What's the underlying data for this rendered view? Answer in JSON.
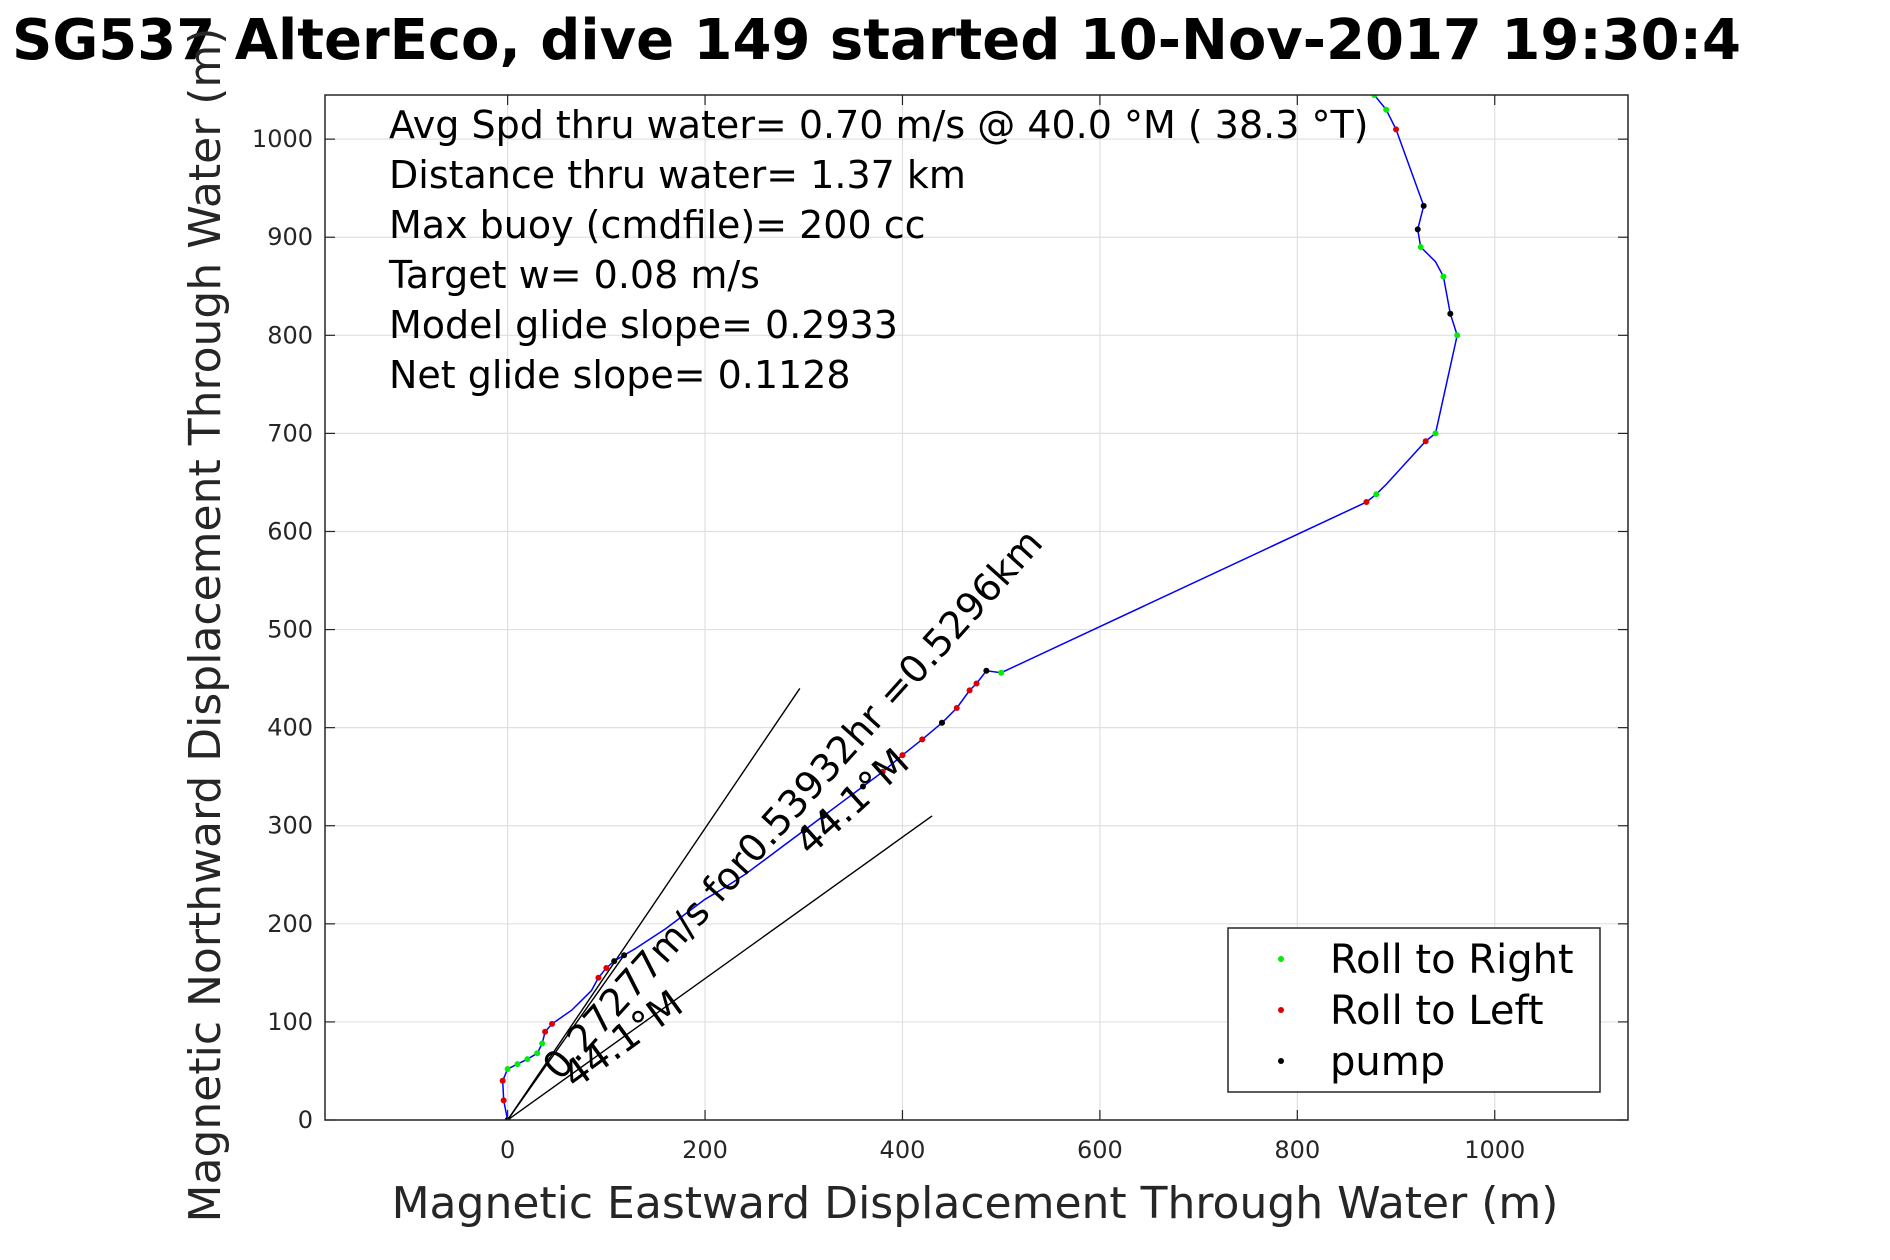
{
  "title": "SG537 AlterEco, dive 149 started 10-Nov-2017 19:30:4",
  "annotations": [
    "Avg Spd thru water=  0.70 m/s @  40.0 °M ( 38.3 °T)",
    "Distance thru water=  1.37 km",
    "Max buoy (cmdfile)= 200 cc",
    "Target w= 0.08 m/s",
    "Model glide slope= 0.2933",
    "Net glide slope= 0.1128"
  ],
  "current_text": "0.27277m/s for0.53932hr =0.5296km",
  "heading_labels": [
    "44.1°M",
    "44.1°M"
  ],
  "chart_data": {
    "type": "line",
    "xlabel": "Magnetic Eastward Displacement Through Water (m)",
    "ylabel": "Magnetic Northward Displacement Through Water (m)",
    "xlim": [
      -185,
      1135
    ],
    "ylim": [
      0,
      1045
    ],
    "xticks": [
      0,
      200,
      400,
      600,
      800,
      1000
    ],
    "yticks": [
      0,
      100,
      200,
      300,
      400,
      500,
      600,
      700,
      800,
      900,
      1000
    ],
    "grid": true,
    "legend": {
      "placement": "bottom-right",
      "entries": [
        {
          "label": "Roll to Right",
          "color": "#00ee00"
        },
        {
          "label": "Roll to Left",
          "color": "#dd0000"
        },
        {
          "label": "pump",
          "color": "#000000"
        }
      ]
    },
    "track": {
      "color": "#0000ff",
      "points": [
        [
          0,
          0
        ],
        [
          -4,
          20
        ],
        [
          -5,
          40
        ],
        [
          0,
          52
        ],
        [
          10,
          57
        ],
        [
          20,
          62
        ],
        [
          30,
          68
        ],
        [
          35,
          78
        ],
        [
          38,
          90
        ],
        [
          45,
          98
        ],
        [
          55,
          105
        ],
        [
          65,
          112
        ],
        [
          75,
          122
        ],
        [
          85,
          132
        ],
        [
          92,
          145
        ],
        [
          100,
          155
        ],
        [
          108,
          162
        ],
        [
          118,
          168
        ],
        [
          130,
          175
        ],
        [
          145,
          185
        ],
        [
          160,
          195
        ],
        [
          180,
          210
        ],
        [
          200,
          225
        ],
        [
          220,
          237
        ],
        [
          240,
          250
        ],
        [
          260,
          265
        ],
        [
          280,
          280
        ],
        [
          300,
          295
        ],
        [
          320,
          310
        ],
        [
          340,
          325
        ],
        [
          360,
          340
        ],
        [
          380,
          355
        ],
        [
          400,
          372
        ],
        [
          420,
          388
        ],
        [
          440,
          405
        ],
        [
          455,
          420
        ],
        [
          468,
          438
        ],
        [
          475,
          445
        ],
        [
          485,
          458
        ],
        [
          500,
          456
        ],
        [
          870,
          630
        ],
        [
          880,
          638
        ],
        [
          890,
          648
        ],
        [
          930,
          692
        ],
        [
          940,
          700
        ],
        [
          962,
          800
        ],
        [
          955,
          822
        ],
        [
          948,
          860
        ],
        [
          940,
          875
        ],
        [
          925,
          890
        ],
        [
          922,
          908
        ],
        [
          928,
          932
        ],
        [
          900,
          1010
        ],
        [
          890,
          1030
        ],
        [
          878,
          1045
        ]
      ]
    },
    "roll_right": [
      [
        0,
        52
      ],
      [
        10,
        57
      ],
      [
        20,
        62
      ],
      [
        30,
        68
      ],
      [
        35,
        78
      ],
      [
        940,
        700
      ],
      [
        962,
        800
      ],
      [
        948,
        860
      ],
      [
        925,
        890
      ],
      [
        878,
        1045
      ],
      [
        890,
        1030
      ],
      [
        500,
        456
      ],
      [
        880,
        638
      ]
    ],
    "roll_left": [
      [
        -5,
        40
      ],
      [
        -4,
        20
      ],
      [
        38,
        90
      ],
      [
        45,
        98
      ],
      [
        92,
        145
      ],
      [
        100,
        155
      ],
      [
        380,
        355
      ],
      [
        400,
        372
      ],
      [
        420,
        388
      ],
      [
        440,
        405
      ],
      [
        455,
        420
      ],
      [
        468,
        438
      ],
      [
        475,
        445
      ],
      [
        870,
        630
      ],
      [
        930,
        692
      ],
      [
        900,
        1010
      ]
    ],
    "pump": [
      [
        0,
        0
      ],
      [
        108,
        162
      ],
      [
        118,
        168
      ],
      [
        300,
        295
      ],
      [
        320,
        310
      ],
      [
        360,
        340
      ],
      [
        440,
        405
      ],
      [
        485,
        458
      ],
      [
        955,
        822
      ],
      [
        922,
        908
      ],
      [
        928,
        932
      ]
    ],
    "black_lines": [
      [
        [
          0,
          0
        ],
        [
          296,
          440
        ]
      ],
      [
        [
          0,
          0
        ],
        [
          430,
          310
        ]
      ],
      [
        [
          0,
          0
        ],
        [
          118,
          168
        ]
      ]
    ]
  }
}
